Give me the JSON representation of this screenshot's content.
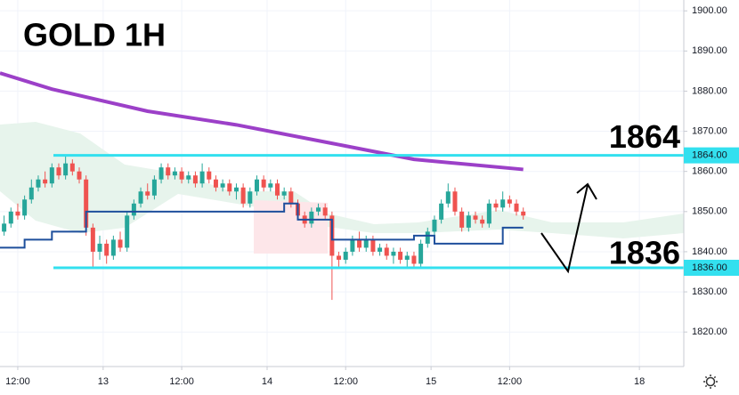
{
  "chart_data": {
    "type": "candlestick",
    "title": "GOLD 1H",
    "x": [
      -2,
      -1,
      0,
      1,
      2,
      3,
      4,
      5,
      6,
      7,
      8,
      9,
      10,
      11,
      12,
      13,
      14,
      15,
      16,
      17,
      18,
      19,
      20,
      21,
      22,
      23,
      24,
      25,
      26,
      27,
      28,
      29,
      30,
      31,
      32,
      33,
      34,
      35,
      36,
      37,
      38,
      39,
      40,
      41,
      42,
      43,
      44,
      45,
      46,
      47,
      48,
      49,
      50,
      51,
      52,
      53,
      54,
      55,
      56,
      57,
      58,
      59,
      60,
      61,
      62,
      63,
      64,
      65,
      66,
      67,
      68,
      69,
      70,
      71,
      72,
      73,
      74
    ],
    "open": [
      1845,
      1847,
      1850,
      1849,
      1853,
      1856,
      1858,
      1857,
      1861,
      1859,
      1862,
      1860,
      1858,
      1846,
      1840,
      1842,
      1839,
      1843,
      1841,
      1849,
      1852,
      1855,
      1854,
      1858,
      1861,
      1859,
      1860,
      1858,
      1859,
      1857,
      1860,
      1858,
      1856,
      1857,
      1855,
      1856,
      1852,
      1855,
      1858,
      1856,
      1857,
      1854,
      1855,
      1852,
      1849,
      1847,
      1850,
      1851,
      1849,
      1839,
      1838,
      1840,
      1843,
      1841,
      1843,
      1840,
      1841,
      1839,
      1840,
      1838,
      1839,
      1837,
      1842,
      1845,
      1848,
      1852,
      1855,
      1850,
      1846,
      1849,
      1848,
      1847,
      1852,
      1851,
      1853,
      1852,
      1850
    ],
    "high": [
      1849,
      1851,
      1852,
      1854,
      1858,
      1859,
      1860,
      1862,
      1862,
      1864,
      1863,
      1861,
      1859,
      1847,
      1844,
      1843,
      1844,
      1845,
      1850,
      1853,
      1856,
      1857,
      1859,
      1862,
      1862,
      1861,
      1861,
      1860,
      1860,
      1862,
      1861,
      1859,
      1858,
      1858,
      1857,
      1857,
      1856,
      1859,
      1859,
      1858,
      1858,
      1856,
      1856,
      1853,
      1850,
      1851,
      1852,
      1852,
      1850,
      1840,
      1841,
      1844,
      1845,
      1844,
      1844,
      1842,
      1842,
      1841,
      1841,
      1840,
      1840,
      1843,
      1846,
      1849,
      1853,
      1857,
      1856,
      1851,
      1850,
      1850,
      1849,
      1853,
      1853,
      1855,
      1854,
      1853,
      1851
    ],
    "low": [
      1844,
      1846,
      1848,
      1848,
      1852,
      1855,
      1856,
      1856,
      1858,
      1858,
      1859,
      1857,
      1844,
      1836,
      1838,
      1837,
      1838,
      1840,
      1840,
      1848,
      1851,
      1853,
      1853,
      1857,
      1858,
      1858,
      1857,
      1857,
      1856,
      1856,
      1857,
      1855,
      1855,
      1854,
      1853,
      1851,
      1851,
      1854,
      1855,
      1855,
      1853,
      1853,
      1851,
      1848,
      1846,
      1846,
      1849,
      1848,
      1828,
      1836,
      1837,
      1839,
      1840,
      1840,
      1839,
      1839,
      1838,
      1837,
      1837,
      1836,
      1836,
      1836,
      1841,
      1844,
      1847,
      1851,
      1849,
      1845,
      1845,
      1847,
      1846,
      1846,
      1850,
      1850,
      1851,
      1849,
      1848
    ],
    "close": [
      1847,
      1850,
      1849,
      1853,
      1856,
      1858,
      1857,
      1861,
      1859,
      1862,
      1860,
      1858,
      1846,
      1840,
      1842,
      1839,
      1843,
      1841,
      1849,
      1852,
      1855,
      1854,
      1858,
      1861,
      1859,
      1860,
      1858,
      1859,
      1857,
      1860,
      1858,
      1856,
      1857,
      1855,
      1856,
      1852,
      1855,
      1858,
      1856,
      1857,
      1854,
      1855,
      1852,
      1849,
      1847,
      1850,
      1851,
      1849,
      1839,
      1838,
      1840,
      1843,
      1841,
      1843,
      1840,
      1841,
      1839,
      1840,
      1838,
      1839,
      1837,
      1842,
      1845,
      1848,
      1852,
      1855,
      1850,
      1846,
      1849,
      1848,
      1847,
      1852,
      1851,
      1853,
      1852,
      1850,
      1849
    ],
    "up_color": "#26a69a",
    "down_color": "#ef5350",
    "indicators": [
      {
        "color": "#9c40c8",
        "x": [
          -2.6,
          5,
          19,
          32,
          46,
          58,
          74
        ],
        "values": [
          1884.5,
          1880.5,
          1875,
          1871.6,
          1867,
          1863,
          1860.5
        ]
      },
      {
        "color": "#1e4f9c",
        "x": [
          -2.6,
          1,
          1,
          5,
          5,
          10,
          10,
          39,
          39,
          41,
          41,
          46,
          46,
          58,
          58,
          61,
          61,
          71,
          71,
          74
        ],
        "values": [
          1841,
          1841,
          1843,
          1843,
          1845,
          1845,
          1850,
          1850,
          1852,
          1852,
          1848,
          1848,
          1843,
          1843,
          1844,
          1844,
          1842,
          1842,
          1846,
          1846
        ]
      }
    ],
    "levels": [
      {
        "value": 1864,
        "label": "1864",
        "tag": "1864.00",
        "color": "#33e0ef"
      },
      {
        "value": 1836,
        "label": "1836",
        "tag": "1836.00",
        "color": "#33e0ef"
      }
    ],
    "xlim": [
      -2.6,
      97.5
    ],
    "ylim": [
      1811.4,
      1902.7
    ],
    "xticks": [
      {
        "value": 0,
        "label": "12:00"
      },
      {
        "value": 12.5,
        "label": "13"
      },
      {
        "value": 24,
        "label": "12:00"
      },
      {
        "value": 36.5,
        "label": "14"
      },
      {
        "value": 48,
        "label": "12:00"
      },
      {
        "value": 60.5,
        "label": "15"
      },
      {
        "value": 72,
        "label": "12:00"
      },
      {
        "value": 91,
        "label": "18"
      }
    ],
    "yticks": [
      {
        "value": 1820,
        "label": "1820.00"
      },
      {
        "value": 1830,
        "label": "1830.00"
      },
      {
        "value": 1840,
        "label": "1840.00"
      },
      {
        "value": 1850,
        "label": "1850.00"
      },
      {
        "value": 1860,
        "label": "1860.00"
      },
      {
        "value": 1870,
        "label": "1870.00"
      },
      {
        "value": 1880,
        "label": "1880.00"
      },
      {
        "value": 1890,
        "label": "1890.00"
      },
      {
        "value": 1900,
        "label": "1900.00"
      }
    ],
    "grid": true
  }
}
